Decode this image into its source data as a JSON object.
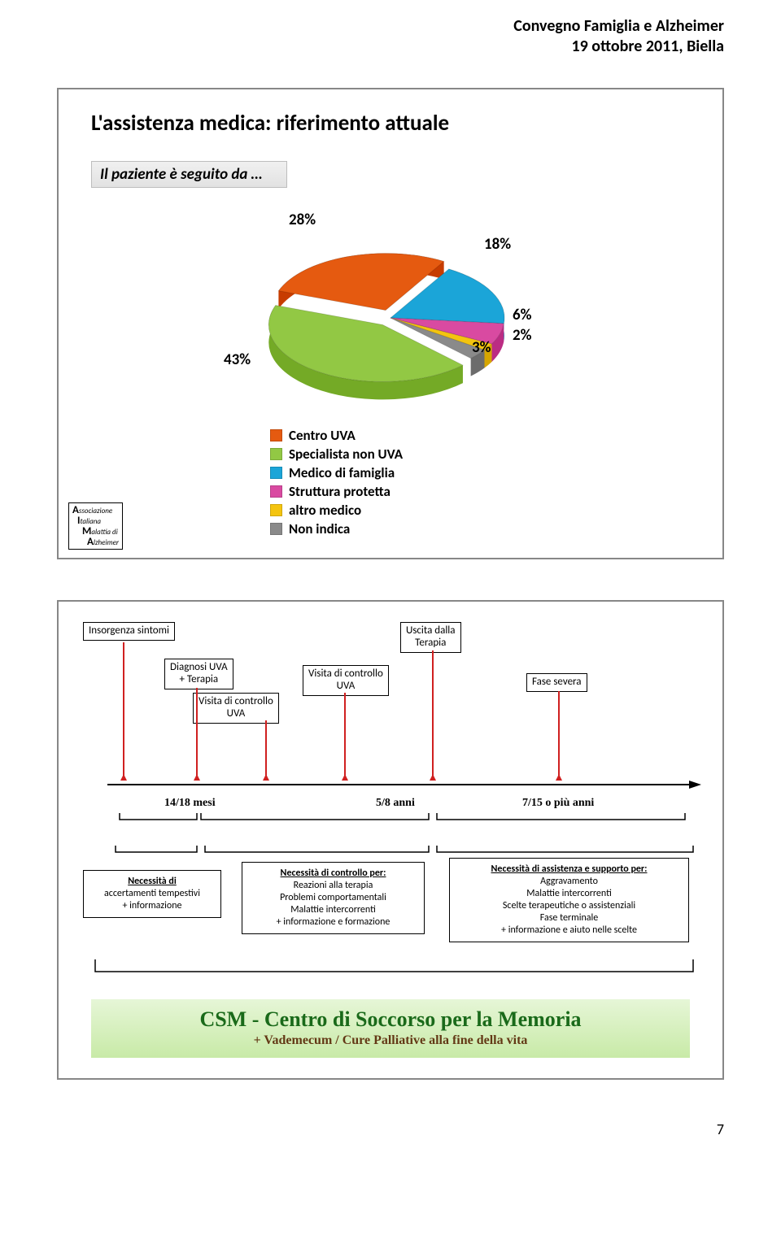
{
  "header": {
    "line1": "Convegno Famiglia e Alzheimer",
    "line2": "19 ottobre 2011, Biella"
  },
  "slide1": {
    "title": "L'assistenza medica: riferimento attuale",
    "subtitle": "Il paziente è seguito da …",
    "pie": {
      "type": "pie",
      "slices": [
        {
          "label": "Centro UVA",
          "value": 28,
          "pct": "28%",
          "color": "#e55a10"
        },
        {
          "label": "Specialista non UVA",
          "value": 43,
          "pct": "43%",
          "color": "#92c844"
        },
        {
          "label": "Medico di famiglia",
          "value": 18,
          "pct": "18%",
          "color": "#1ba5d8"
        },
        {
          "label": "Struttura protetta",
          "value": 6,
          "pct": "6%",
          "color": "#d94aa1"
        },
        {
          "label": "altro medico",
          "value": 2,
          "pct": "2%",
          "color": "#f4c40f"
        },
        {
          "label": "Non indica",
          "value": 3,
          "pct": "3%",
          "color": "#8a8a8a"
        }
      ],
      "background_color": "#ffffff",
      "label_fontsize": 19
    },
    "aima": {
      "l1_cap": "A",
      "l1_rest": "ssociazione",
      "l2_cap": "I",
      "l2_rest": "taliana",
      "l3_cap": "M",
      "l3_rest": "alattia di",
      "l4_cap": "A",
      "l4_rest": "lzheimer"
    }
  },
  "slide2": {
    "timeline": {
      "boxes": {
        "insorgenza": "Insorgenza sintomi",
        "diagnosi": "Diagnosi UVA\n+ Terapia",
        "visita1": "Visita di controllo\nUVA",
        "visita2": "Visita di controllo\nUVA",
        "uscita": "Uscita dalla\nTerapia",
        "fase": "Fase severa"
      },
      "axis_color": "#000000",
      "tick_color": "#d02020",
      "periods": {
        "p1": "14/18 mesi",
        "p2": "5/8 anni",
        "p3": "7/15 o più anni"
      }
    },
    "needs": {
      "n1": {
        "head": "Necessità di",
        "body": "accertamenti tempestivi\n+ informazione"
      },
      "n2": {
        "head": "Necessità di controllo per:",
        "body": "Reazioni alla terapia\nProblemi comportamentali\nMalattie intercorrenti\n+ informazione e formazione"
      },
      "n3": {
        "head": "Necessità di assistenza e supporto per:",
        "body": "Aggravamento\nMalattie intercorrenti\nScelte  terapeutiche o assistenziali\nFase terminale\n+ informazione e aiuto nelle scelte"
      }
    },
    "csm": {
      "title": "CSM - Centro di Soccorso per la Memoria",
      "sub": "+ Vademecum / Cure Palliative alla fine della vita"
    }
  },
  "page_number": "7"
}
